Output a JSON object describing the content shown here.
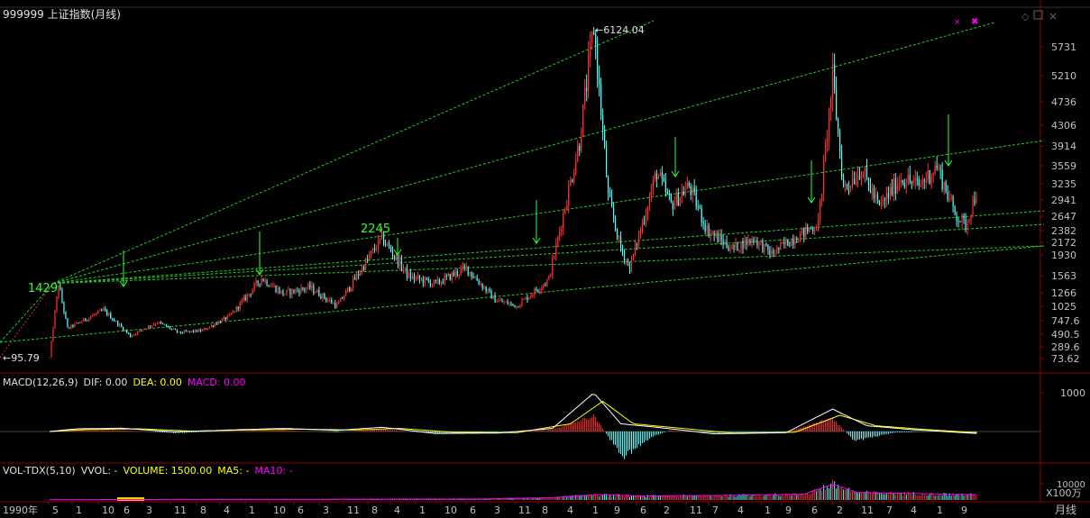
{
  "header": {
    "code": "999999",
    "name": "上证指数(月线)"
  },
  "colors": {
    "background": "#000000",
    "up": "#ff3232",
    "down": "#54ffff",
    "trendline": "#22cc22",
    "grid": "#8b0000",
    "axis_text": "#c0c0c0",
    "dif": "#ffffff",
    "dea": "#ffff00",
    "macd": "#ff00ff",
    "annotation": "#33ff33"
  },
  "chart_data": [
    {
      "type": "candlestick",
      "title": "999999 上证指数(月线)",
      "y_axis_ticks": [
        "5731",
        "5210",
        "4736",
        "4306",
        "3914",
        "3559",
        "3235",
        "2941",
        "2647",
        "2382",
        "2172",
        "1930",
        "1563",
        "1266",
        "1025",
        "747.6",
        "490.5",
        "289.6",
        "73.62"
      ],
      "x_axis_ticks": [
        "1990年",
        "5",
        "1",
        "10",
        "6",
        "3",
        "11",
        "8",
        "4",
        "1",
        "10",
        "6",
        "3",
        "11",
        "8",
        "4",
        "1",
        "10",
        "6",
        "3",
        "11",
        "8",
        "4",
        "1",
        "9",
        "6",
        "2",
        "11",
        "7",
        "4",
        "1",
        "9",
        "6",
        "2",
        "11",
        "7",
        "4",
        "1",
        "9"
      ],
      "x_axis_unit": "月线",
      "log_scale": true,
      "annotations": [
        {
          "text": "6124.04",
          "value": 6124.04,
          "type": "high"
        },
        {
          "text": "95.79",
          "value": 95.79,
          "type": "low"
        },
        {
          "text": "1429",
          "value": 1429
        },
        {
          "text": "2245",
          "value": 2245
        }
      ],
      "price_path": [
        {
          "x": 0,
          "y": 96
        },
        {
          "x": 5,
          "y": 1429
        },
        {
          "x": 10,
          "y": 600
        },
        {
          "x": 30,
          "y": 950
        },
        {
          "x": 45,
          "y": 460
        },
        {
          "x": 60,
          "y": 720
        },
        {
          "x": 72,
          "y": 520
        },
        {
          "x": 85,
          "y": 560
        },
        {
          "x": 100,
          "y": 830
        },
        {
          "x": 118,
          "y": 1520
        },
        {
          "x": 130,
          "y": 1250
        },
        {
          "x": 145,
          "y": 1360
        },
        {
          "x": 160,
          "y": 1030
        },
        {
          "x": 172,
          "y": 1600
        },
        {
          "x": 185,
          "y": 2245
        },
        {
          "x": 200,
          "y": 1550
        },
        {
          "x": 215,
          "y": 1420
        },
        {
          "x": 232,
          "y": 1700
        },
        {
          "x": 248,
          "y": 1140
        },
        {
          "x": 260,
          "y": 1030
        },
        {
          "x": 278,
          "y": 1500
        },
        {
          "x": 295,
          "y": 4000
        },
        {
          "x": 303,
          "y": 6124
        },
        {
          "x": 311,
          "y": 3000
        },
        {
          "x": 318,
          "y": 2050
        },
        {
          "x": 323,
          "y": 1700
        },
        {
          "x": 338,
          "y": 3450
        },
        {
          "x": 346,
          "y": 2850
        },
        {
          "x": 356,
          "y": 3200
        },
        {
          "x": 366,
          "y": 2400
        },
        {
          "x": 380,
          "y": 2050
        },
        {
          "x": 392,
          "y": 2240
        },
        {
          "x": 402,
          "y": 1950
        },
        {
          "x": 412,
          "y": 2200
        },
        {
          "x": 428,
          "y": 2500
        },
        {
          "x": 436,
          "y": 5180
        },
        {
          "x": 442,
          "y": 3150
        },
        {
          "x": 452,
          "y": 3500
        },
        {
          "x": 462,
          "y": 2800
        },
        {
          "x": 474,
          "y": 3350
        },
        {
          "x": 484,
          "y": 3200
        },
        {
          "x": 494,
          "y": 3560
        },
        {
          "x": 504,
          "y": 2700
        },
        {
          "x": 510,
          "y": 2480
        },
        {
          "x": 516,
          "y": 3100
        }
      ]
    },
    {
      "type": "line",
      "title": "MACD(12,26,9)",
      "series": [
        {
          "name": "DIF",
          "value": "0.00"
        },
        {
          "name": "DEA",
          "value": "0.00"
        },
        {
          "name": "MACD",
          "value": "0.00"
        }
      ],
      "y_axis_ticks": [
        "1000"
      ],
      "dif_path": [
        {
          "x": 0,
          "y": 0
        },
        {
          "x": 15,
          "y": 70
        },
        {
          "x": 40,
          "y": 85
        },
        {
          "x": 70,
          "y": -10
        },
        {
          "x": 100,
          "y": 40
        },
        {
          "x": 130,
          "y": 80
        },
        {
          "x": 160,
          "y": 30
        },
        {
          "x": 185,
          "y": 110
        },
        {
          "x": 215,
          "y": -50
        },
        {
          "x": 250,
          "y": -40
        },
        {
          "x": 280,
          "y": 80
        },
        {
          "x": 303,
          "y": 1000
        },
        {
          "x": 318,
          "y": 200
        },
        {
          "x": 340,
          "y": 100
        },
        {
          "x": 370,
          "y": -60
        },
        {
          "x": 410,
          "y": -30
        },
        {
          "x": 436,
          "y": 580
        },
        {
          "x": 455,
          "y": 150
        },
        {
          "x": 480,
          "y": 50
        },
        {
          "x": 516,
          "y": -50
        }
      ],
      "dea_path": [
        {
          "x": 0,
          "y": 0
        },
        {
          "x": 20,
          "y": 50
        },
        {
          "x": 50,
          "y": 70
        },
        {
          "x": 80,
          "y": 10
        },
        {
          "x": 110,
          "y": 40
        },
        {
          "x": 140,
          "y": 60
        },
        {
          "x": 170,
          "y": 40
        },
        {
          "x": 195,
          "y": 80
        },
        {
          "x": 225,
          "y": -20
        },
        {
          "x": 260,
          "y": -30
        },
        {
          "x": 290,
          "y": 200
        },
        {
          "x": 308,
          "y": 780
        },
        {
          "x": 325,
          "y": 200
        },
        {
          "x": 350,
          "y": 90
        },
        {
          "x": 380,
          "y": -40
        },
        {
          "x": 415,
          "y": -20
        },
        {
          "x": 440,
          "y": 420
        },
        {
          "x": 460,
          "y": 150
        },
        {
          "x": 485,
          "y": 60
        },
        {
          "x": 516,
          "y": -30
        }
      ],
      "histogram_path": [
        {
          "x": 0,
          "y": 0
        },
        {
          "x": 15,
          "y": 40
        },
        {
          "x": 40,
          "y": 30
        },
        {
          "x": 70,
          "y": -40
        },
        {
          "x": 100,
          "y": 10
        },
        {
          "x": 130,
          "y": 30
        },
        {
          "x": 160,
          "y": -20
        },
        {
          "x": 185,
          "y": 60
        },
        {
          "x": 215,
          "y": -60
        },
        {
          "x": 250,
          "y": -20
        },
        {
          "x": 280,
          "y": 50
        },
        {
          "x": 303,
          "y": 400
        },
        {
          "x": 312,
          "y": -200
        },
        {
          "x": 320,
          "y": -650
        },
        {
          "x": 335,
          "y": -150
        },
        {
          "x": 345,
          "y": 30
        },
        {
          "x": 370,
          "y": -40
        },
        {
          "x": 410,
          "y": -20
        },
        {
          "x": 436,
          "y": 350
        },
        {
          "x": 448,
          "y": -250
        },
        {
          "x": 470,
          "y": -30
        },
        {
          "x": 500,
          "y": 10
        },
        {
          "x": 516,
          "y": -60
        }
      ]
    },
    {
      "type": "bar",
      "title": "VOL-TDX(5,10)",
      "series": [
        {
          "name": "VVOL",
          "value": "-"
        },
        {
          "name": "VOLUME",
          "value": "1500.00"
        },
        {
          "name": "MA5",
          "value": "-"
        },
        {
          "name": "MA10",
          "value": "-"
        }
      ],
      "y_axis_ticks": [
        "10000"
      ],
      "y_axis_unit": "X100万",
      "volume_path": [
        {
          "x": 0,
          "y": 200
        },
        {
          "x": 240,
          "y": 600
        },
        {
          "x": 280,
          "y": 1400
        },
        {
          "x": 303,
          "y": 3200
        },
        {
          "x": 330,
          "y": 2400
        },
        {
          "x": 380,
          "y": 2800
        },
        {
          "x": 420,
          "y": 3500
        },
        {
          "x": 436,
          "y": 9500
        },
        {
          "x": 450,
          "y": 4500
        },
        {
          "x": 516,
          "y": 3200
        }
      ]
    }
  ],
  "top_right_icons": [
    "diamond-icon",
    "restore-icon",
    "close-icon"
  ],
  "top_markers": [
    "×",
    "✖"
  ]
}
